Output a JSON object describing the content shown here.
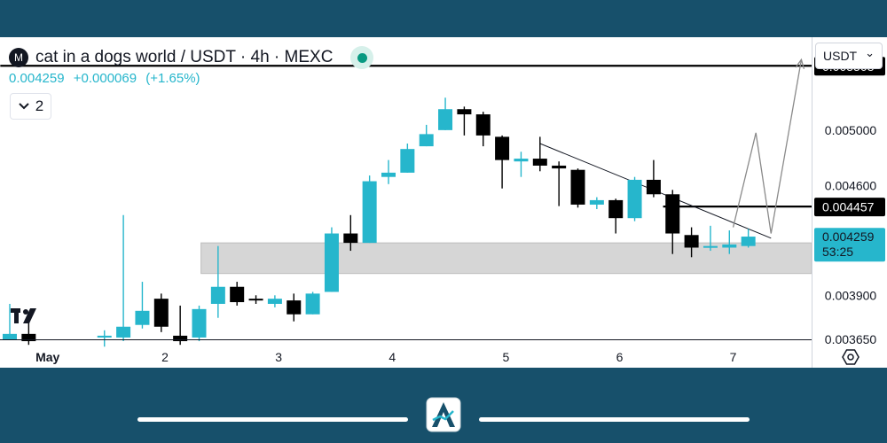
{
  "header": {
    "logo_letter": "M",
    "title": "cat in a dogs world / USDT · 4h · MEXC",
    "price": "0.004259",
    "change": "+0.000069",
    "change_pct": "(+1.65%)",
    "collapse_count": "2"
  },
  "currency_select": {
    "value": "USDT",
    "chevron": "⌄"
  },
  "colors": {
    "up": "#26b6cc",
    "down": "#000000",
    "zone": "#d6d6d6",
    "level_line": "#000000"
  },
  "chart_data": {
    "type": "candlestick",
    "title": "cat in a dogs world / USDT · 4h · MEXC",
    "ylim": [
      0.00365,
      0.00575
    ],
    "y_scale": "log",
    "x_tick_labels": [
      "May",
      "2",
      "3",
      "4",
      "5",
      "6",
      "7"
    ],
    "price_axis_labels": [
      "0.005000",
      "0.004600",
      "0.003900",
      "0.003650"
    ],
    "price_badges": [
      {
        "value": 0.005508,
        "label": "0.005508",
        "style": "dark"
      },
      {
        "value": 0.004457,
        "label": "0.004457",
        "style": "dark"
      },
      {
        "value": 0.004259,
        "label": "0.004259",
        "countdown": "53:25",
        "style": "accent"
      }
    ],
    "candles": [
      {
        "x": 0,
        "o": 0.00365,
        "h": 0.00385,
        "l": 0.00365,
        "c": 0.00368
      },
      {
        "x": 1,
        "o": 0.00368,
        "h": 0.0038,
        "l": 0.00362,
        "c": 0.00364
      },
      {
        "x": 5,
        "o": 0.00366,
        "h": 0.0037,
        "l": 0.00361,
        "c": 0.00367
      },
      {
        "x": 6,
        "o": 0.00366,
        "h": 0.0044,
        "l": 0.00364,
        "c": 0.00372
      },
      {
        "x": 7,
        "o": 0.00373,
        "h": 0.00398,
        "l": 0.00371,
        "c": 0.00381
      },
      {
        "x": 8,
        "o": 0.00388,
        "h": 0.00391,
        "l": 0.00369,
        "c": 0.00372
      },
      {
        "x": 9,
        "o": 0.00367,
        "h": 0.00384,
        "l": 0.00362,
        "c": 0.00364
      },
      {
        "x": 10,
        "o": 0.00366,
        "h": 0.00384,
        "l": 0.00364,
        "c": 0.00382
      },
      {
        "x": 11,
        "o": 0.00385,
        "h": 0.0042,
        "l": 0.00377,
        "c": 0.00395
      },
      {
        "x": 12,
        "o": 0.00395,
        "h": 0.00398,
        "l": 0.00384,
        "c": 0.00386
      },
      {
        "x": 13,
        "o": 0.00388,
        "h": 0.0039,
        "l": 0.00385,
        "c": 0.00387
      },
      {
        "x": 14,
        "o": 0.00385,
        "h": 0.0039,
        "l": 0.00383,
        "c": 0.00388
      },
      {
        "x": 15,
        "o": 0.00387,
        "h": 0.00391,
        "l": 0.00375,
        "c": 0.00379
      },
      {
        "x": 16,
        "o": 0.00379,
        "h": 0.00392,
        "l": 0.00379,
        "c": 0.00391
      },
      {
        "x": 17,
        "o": 0.00392,
        "h": 0.00432,
        "l": 0.00392,
        "c": 0.00428
      },
      {
        "x": 18,
        "o": 0.00428,
        "h": 0.0044,
        "l": 0.00417,
        "c": 0.00422
      },
      {
        "x": 19,
        "o": 0.00422,
        "h": 0.00467,
        "l": 0.00422,
        "c": 0.00463
      },
      {
        "x": 20,
        "o": 0.00466,
        "h": 0.00478,
        "l": 0.00461,
        "c": 0.00469
      },
      {
        "x": 21,
        "o": 0.00469,
        "h": 0.0049,
        "l": 0.00469,
        "c": 0.00486
      },
      {
        "x": 22,
        "o": 0.00488,
        "h": 0.00504,
        "l": 0.00488,
        "c": 0.00497
      },
      {
        "x": 23,
        "o": 0.005,
        "h": 0.00525,
        "l": 0.005,
        "c": 0.00516
      },
      {
        "x": 24,
        "o": 0.00516,
        "h": 0.00518,
        "l": 0.00496,
        "c": 0.00512
      },
      {
        "x": 25,
        "o": 0.00512,
        "h": 0.00514,
        "l": 0.00488,
        "c": 0.00496
      },
      {
        "x": 26,
        "o": 0.00495,
        "h": 0.00496,
        "l": 0.00458,
        "c": 0.00478
      },
      {
        "x": 27,
        "o": 0.00477,
        "h": 0.00484,
        "l": 0.00466,
        "c": 0.00479
      },
      {
        "x": 28,
        "o": 0.00479,
        "h": 0.00495,
        "l": 0.0047,
        "c": 0.00474
      },
      {
        "x": 29,
        "o": 0.00474,
        "h": 0.00477,
        "l": 0.00446,
        "c": 0.00472
      },
      {
        "x": 30,
        "o": 0.00471,
        "h": 0.00472,
        "l": 0.00445,
        "c": 0.00447
      },
      {
        "x": 31,
        "o": 0.00447,
        "h": 0.00452,
        "l": 0.00444,
        "c": 0.0045
      },
      {
        "x": 32,
        "o": 0.0045,
        "h": 0.00451,
        "l": 0.00428,
        "c": 0.00438
      },
      {
        "x": 33,
        "o": 0.00438,
        "h": 0.00466,
        "l": 0.00436,
        "c": 0.00464
      },
      {
        "x": 34,
        "o": 0.00464,
        "h": 0.00478,
        "l": 0.00452,
        "c": 0.00454
      },
      {
        "x": 35,
        "o": 0.00454,
        "h": 0.00457,
        "l": 0.00415,
        "c": 0.00428
      },
      {
        "x": 36,
        "o": 0.00427,
        "h": 0.00432,
        "l": 0.00413,
        "c": 0.00419
      },
      {
        "x": 37,
        "o": 0.00419,
        "h": 0.00433,
        "l": 0.00417,
        "c": 0.0042
      },
      {
        "x": 38,
        "o": 0.00419,
        "h": 0.0043,
        "l": 0.00415,
        "c": 0.00421
      },
      {
        "x": 39,
        "o": 0.0042,
        "h": 0.00431,
        "l": 0.00419,
        "c": 0.00426
      }
    ],
    "x_ticks": [
      {
        "label": "May",
        "x": 2
      },
      {
        "label": "2",
        "x": 8.2
      },
      {
        "label": "3",
        "x": 14.2
      },
      {
        "label": "4",
        "x": 20.2
      },
      {
        "label": "5",
        "x": 26.2
      },
      {
        "label": "6",
        "x": 32.2
      },
      {
        "label": "7",
        "x": 38.2
      }
    ],
    "zone": {
      "x_from": 10.1,
      "x_to": 42.5,
      "y_from": 0.00403,
      "y_to": 0.00422
    },
    "horizontal_lines": [
      {
        "y": 0.005508,
        "x_from": -0.5
      },
      {
        "y": 0.004457,
        "x_from": 34.5
      }
    ],
    "trendline": [
      {
        "x": 28,
        "y": 0.0049
      },
      {
        "x": 40.2,
        "y": 0.00425
      }
    ],
    "projection_path": [
      {
        "x": 38.2,
        "y": 0.00432
      },
      {
        "x": 39.4,
        "y": 0.00498
      },
      {
        "x": 40.2,
        "y": 0.00428
      },
      {
        "x": 41.8,
        "y": 0.00556
      }
    ]
  }
}
